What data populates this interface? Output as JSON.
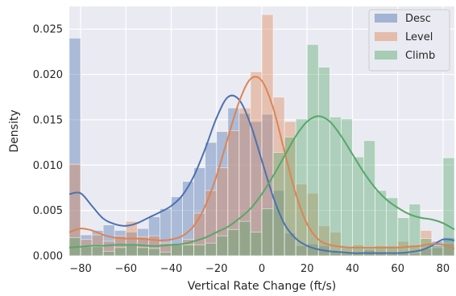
{
  "chart_data": {
    "type": "histogram",
    "xlabel": "Vertical Rate Change (ft/s)",
    "ylabel": "Density",
    "xlim": [
      -85,
      85
    ],
    "ylim": [
      0,
      0.0275
    ],
    "x_ticks": [
      -80,
      -60,
      -40,
      -20,
      0,
      20,
      40,
      60,
      80
    ],
    "x_tick_labels": [
      "−80",
      "−60",
      "−40",
      "−20",
      "0",
      "20",
      "40",
      "60",
      "80"
    ],
    "y_ticks": [
      0,
      0.005,
      0.01,
      0.015,
      0.02,
      0.025
    ],
    "y_tick_labels": [
      "0.000",
      "0.005",
      "0.010",
      "0.015",
      "0.020",
      "0.025"
    ],
    "grid": true,
    "legend_position": "top-right",
    "background": "#EAEAF2",
    "bin_edges": [
      -85,
      -80,
      -75,
      -70,
      -65,
      -60,
      -55,
      -50,
      -45,
      -40,
      -35,
      -30,
      -25,
      -20,
      -15,
      -10,
      -5,
      0,
      5,
      10,
      15,
      20,
      25,
      30,
      35,
      40,
      45,
      50,
      55,
      60,
      65,
      70,
      75,
      80,
      85
    ],
    "series": [
      {
        "name": "Desc",
        "color": "#4C72B0",
        "bar_alpha": 0.4,
        "hist": [
          0.024,
          0.0023,
          0.0028,
          0.0034,
          0.0028,
          0.0026,
          0.003,
          0.0043,
          0.0052,
          0.0065,
          0.0082,
          0.0097,
          0.0125,
          0.0137,
          0.0163,
          0.0157,
          0.0148,
          0.0156,
          0.0072,
          0.0025,
          0.0011,
          0.0013,
          0.0011,
          0.0004,
          0.0003,
          0.0003,
          0.0006,
          0.0003,
          0.0002,
          0.0003,
          0.0003,
          0.0008,
          0.0016,
          0.002
        ],
        "kde": {
          "x": [
            -85,
            -80,
            -75,
            -70,
            -65,
            -60,
            -55,
            -50,
            -45,
            -40,
            -35,
            -30,
            -25,
            -20,
            -15,
            -10,
            -5,
            0,
            5,
            10,
            15,
            20,
            25,
            30,
            35,
            40,
            45,
            50,
            55,
            60,
            65,
            70,
            75,
            80,
            85
          ],
          "y": [
            0.0068,
            0.0069,
            0.0055,
            0.0041,
            0.0035,
            0.0033,
            0.0036,
            0.0042,
            0.0048,
            0.0055,
            0.0067,
            0.0088,
            0.0118,
            0.0152,
            0.0175,
            0.0172,
            0.0145,
            0.0105,
            0.0065,
            0.0035,
            0.0019,
            0.0011,
            0.0007,
            0.0005,
            0.0004,
            0.0003,
            0.0003,
            0.0003,
            0.0003,
            0.0003,
            0.0004,
            0.0006,
            0.0011,
            0.0018,
            0.0017
          ]
        }
      },
      {
        "name": "Level",
        "color": "#DD8452",
        "bar_alpha": 0.4,
        "hist": [
          0.0101,
          0.0018,
          0.0023,
          0.0016,
          0.0022,
          0.0038,
          0.0021,
          0.0022,
          0.0014,
          0.0012,
          0.0018,
          0.0047,
          0.0072,
          0.0097,
          0.0138,
          0.0163,
          0.0203,
          0.0266,
          0.0175,
          0.0148,
          0.0079,
          0.0069,
          0.0033,
          0.0026,
          0.0009,
          0.0012,
          0.0008,
          0.0011,
          0.0011,
          0.0016,
          0.0012,
          0.0028,
          0.0009,
          0.0014
        ],
        "kde": {
          "x": [
            -85,
            -80,
            -75,
            -70,
            -65,
            -60,
            -55,
            -50,
            -45,
            -40,
            -35,
            -30,
            -25,
            -20,
            -15,
            -10,
            -5,
            0,
            5,
            10,
            15,
            20,
            25,
            30,
            35,
            40,
            45,
            50,
            55,
            60,
            65,
            70,
            75,
            80,
            85
          ],
          "y": [
            0.0026,
            0.003,
            0.0028,
            0.0023,
            0.002,
            0.0019,
            0.0019,
            0.0018,
            0.0017,
            0.0018,
            0.0022,
            0.0033,
            0.0055,
            0.0088,
            0.013,
            0.017,
            0.0195,
            0.0193,
            0.0163,
            0.0115,
            0.0068,
            0.0035,
            0.0018,
            0.0012,
            0.001,
            0.0009,
            0.0009,
            0.0009,
            0.0009,
            0.0009,
            0.001,
            0.0011,
            0.0013,
            0.0012,
            0.0008
          ]
        }
      },
      {
        "name": "Climb",
        "color": "#55A868",
        "bar_alpha": 0.4,
        "hist": [
          0.002,
          0.001,
          0.001,
          0.0005,
          0.0009,
          0.0012,
          0.0009,
          0.0008,
          0.0004,
          0.0012,
          0.0012,
          0.0012,
          0.0014,
          0.0022,
          0.0029,
          0.0038,
          0.0026,
          0.0052,
          0.0114,
          0.0131,
          0.0151,
          0.0233,
          0.0208,
          0.0153,
          0.0151,
          0.0109,
          0.0127,
          0.0072,
          0.0064,
          0.0042,
          0.0057,
          0.0019,
          0.0011,
          0.0108
        ],
        "kde": {
          "x": [
            -85,
            -80,
            -75,
            -70,
            -65,
            -60,
            -55,
            -50,
            -45,
            -40,
            -35,
            -30,
            -25,
            -20,
            -15,
            -10,
            -5,
            0,
            5,
            10,
            15,
            20,
            25,
            30,
            35,
            40,
            45,
            50,
            55,
            60,
            65,
            70,
            75,
            80,
            85
          ],
          "y": [
            0.0009,
            0.001,
            0.0011,
            0.0011,
            0.0012,
            0.0012,
            0.0012,
            0.0011,
            0.0011,
            0.0012,
            0.0013,
            0.0016,
            0.002,
            0.0026,
            0.0032,
            0.0041,
            0.0052,
            0.0068,
            0.0088,
            0.011,
            0.0132,
            0.0148,
            0.0154,
            0.0148,
            0.0132,
            0.0112,
            0.0092,
            0.0075,
            0.0062,
            0.0053,
            0.0046,
            0.0042,
            0.004,
            0.0036,
            0.0029
          ]
        }
      }
    ]
  }
}
